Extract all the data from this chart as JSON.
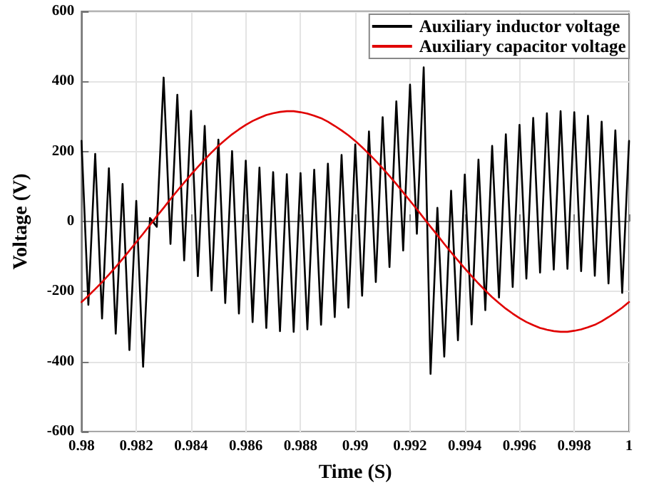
{
  "chart_data": {
    "type": "line",
    "xlabel": "Time (S)",
    "ylabel": "Voltage (V)",
    "x": [
      0.98,
      0.98025,
      0.9805,
      0.98075,
      0.981,
      0.98125,
      0.9815,
      0.98175,
      0.982,
      0.98225,
      0.9825,
      0.98275,
      0.983,
      0.98325,
      0.9835,
      0.98375,
      0.984,
      0.98425,
      0.9845,
      0.98475,
      0.985,
      0.98525,
      0.9855,
      0.98575,
      0.986,
      0.98625,
      0.9865,
      0.98675,
      0.987,
      0.98725,
      0.9875,
      0.98775,
      0.988,
      0.98825,
      0.9885,
      0.98875,
      0.989,
      0.98925,
      0.9895,
      0.98975,
      0.99,
      0.99025,
      0.9905,
      0.99075,
      0.991,
      0.99125,
      0.9915,
      0.99175,
      0.992,
      0.99225,
      0.9925,
      0.99275,
      0.993,
      0.99325,
      0.9935,
      0.99375,
      0.994,
      0.99425,
      0.9945,
      0.99475,
      0.995,
      0.99525,
      0.9955,
      0.99575,
      0.996,
      0.99625,
      0.9965,
      0.99675,
      0.997,
      0.99725,
      0.9975,
      0.99775,
      0.998,
      0.99825,
      0.9985,
      0.99875,
      0.999,
      0.99925,
      0.9995,
      0.99975,
      1.0
    ],
    "series": [
      {
        "name": "Auxiliary inductor voltage",
        "color": "#000000",
        "values": [
          230,
          -238,
          193,
          -277,
          152,
          -320,
          107,
          -367,
          59,
          -415,
          10,
          -15,
          411,
          -64,
          362,
          -111,
          316,
          -156,
          273,
          -197,
          234,
          -233,
          201,
          -263,
          174,
          -287,
          154,
          -304,
          141,
          -313,
          135,
          -315,
          138,
          -308,
          148,
          -295,
          165,
          -273,
          190,
          -246,
          220,
          -212,
          257,
          -173,
          298,
          -130,
          343,
          -83,
          391,
          -35,
          440,
          -435,
          39,
          -386,
          88,
          -339,
          134,
          -294,
          177,
          -253,
          216,
          -217,
          249,
          -187,
          276,
          -163,
          296,
          -146,
          309,
          -137,
          315,
          -135,
          312,
          -142,
          302,
          -155,
          285,
          -177,
          260,
          -204,
          230
        ]
      },
      {
        "name": "Auxiliary capacitor voltage",
        "color": "#e00000",
        "values": [
          -230,
          -212,
          -193,
          -173,
          -152,
          -130,
          -107,
          -83,
          -59,
          -35,
          -10,
          15,
          39,
          64,
          88,
          111,
          134,
          156,
          177,
          197,
          216,
          233,
          249,
          263,
          276,
          287,
          296,
          304,
          309,
          313,
          315,
          315,
          312,
          308,
          302,
          295,
          285,
          273,
          260,
          246,
          230,
          212,
          193,
          173,
          152,
          130,
          107,
          83,
          59,
          35,
          10,
          -15,
          -39,
          -64,
          -88,
          -111,
          -134,
          -156,
          -177,
          -197,
          -216,
          -233,
          -249,
          -263,
          -276,
          -287,
          -296,
          -304,
          -309,
          -313,
          -315,
          -315,
          -312,
          -308,
          -302,
          -295,
          -285,
          -273,
          -260,
          -246,
          -230
        ]
      }
    ],
    "xlim": [
      0.98,
      1
    ],
    "xticks": [
      0.98,
      0.982,
      0.984,
      0.986,
      0.988,
      0.99,
      0.992,
      0.994,
      0.996,
      0.998,
      1
    ],
    "ylim": [
      -600,
      600
    ],
    "yticks": [
      -600,
      -400,
      -200,
      0,
      200,
      400,
      600
    ],
    "grid": true,
    "legend": "top right",
    "marker": "none",
    "line_style": "solid"
  }
}
